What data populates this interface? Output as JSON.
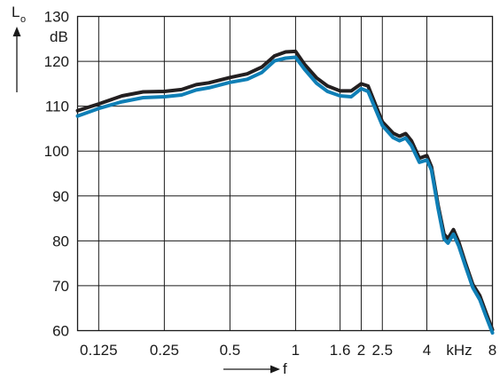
{
  "chart_data": {
    "type": "line",
    "x_scale": "log",
    "xlim": [
      0.1,
      8
    ],
    "ylim": [
      60,
      130
    ],
    "grid": true,
    "ylabel": "L",
    "ylabel_sub": "o",
    "yunit": "dB",
    "xlabel": "f",
    "xunit": "kHz",
    "x_ticks": [
      {
        "value": 0.125,
        "label": "0.125"
      },
      {
        "value": 0.25,
        "label": "0.25"
      },
      {
        "value": 0.5,
        "label": "0.5"
      },
      {
        "value": 1,
        "label": "1"
      },
      {
        "value": 1.6,
        "label": "1.6"
      },
      {
        "value": 2,
        "label": "2"
      },
      {
        "value": 2.5,
        "label": "2.5"
      },
      {
        "value": 4,
        "label": "4"
      },
      {
        "value": 8,
        "label": "8"
      }
    ],
    "y_ticks": [
      {
        "value": 60,
        "label": "60"
      },
      {
        "value": 70,
        "label": "70"
      },
      {
        "value": 80,
        "label": "80"
      },
      {
        "value": 90,
        "label": "90"
      },
      {
        "value": 100,
        "label": "100"
      },
      {
        "value": 110,
        "label": "110"
      },
      {
        "value": 120,
        "label": "120"
      },
      {
        "value": 130,
        "label": "130"
      }
    ],
    "series": [
      {
        "color": "#231f20",
        "x": [
          0.1,
          0.125,
          0.16,
          0.2,
          0.25,
          0.3,
          0.35,
          0.4,
          0.5,
          0.6,
          0.7,
          0.8,
          0.9,
          1.0,
          1.1,
          1.25,
          1.4,
          1.6,
          1.8,
          2.0,
          2.15,
          2.5,
          2.8,
          3.0,
          3.2,
          3.4,
          3.7,
          4.0,
          4.2,
          4.5,
          4.8,
          5.0,
          5.3,
          5.6,
          6.0,
          6.5,
          7.0,
          7.5,
          8.0
        ],
        "y": [
          109,
          110.5,
          112.3,
          113.2,
          113.3,
          113.7,
          114.8,
          115.2,
          116.4,
          117.2,
          118.7,
          121.2,
          122.1,
          122.2,
          119.3,
          116.3,
          114.5,
          113.4,
          113.4,
          115.0,
          114.5,
          106.5,
          104.0,
          103.3,
          103.9,
          102.3,
          98.4,
          99.0,
          96.5,
          88.0,
          81.5,
          80.5,
          82.5,
          79.8,
          75.2,
          70.3,
          67.8,
          63.8,
          60.2
        ]
      },
      {
        "color": "#0f7fb6",
        "x": [
          0.1,
          0.125,
          0.16,
          0.2,
          0.25,
          0.3,
          0.35,
          0.4,
          0.5,
          0.6,
          0.7,
          0.8,
          0.9,
          1.0,
          1.1,
          1.25,
          1.4,
          1.6,
          1.8,
          2.0,
          2.15,
          2.5,
          2.8,
          3.0,
          3.2,
          3.4,
          3.7,
          4.0,
          4.2,
          4.5,
          4.8,
          5.0,
          5.3,
          5.6,
          6.0,
          6.5,
          7.0,
          7.5,
          8.0
        ],
        "y": [
          107.8,
          109.5,
          111,
          111.9,
          112.1,
          112.5,
          113.6,
          114.1,
          115.3,
          116.0,
          117.5,
          120.1,
          120.7,
          120.9,
          118.2,
          115.1,
          113.3,
          112.3,
          112.1,
          113.9,
          113.3,
          105.7,
          103.0,
          102.3,
          102.9,
          101.2,
          97.5,
          98.0,
          95.8,
          87.3,
          80.4,
          79.5,
          81.5,
          78.9,
          74.5,
          69.6,
          66.9,
          63.0,
          59.5
        ]
      }
    ]
  }
}
